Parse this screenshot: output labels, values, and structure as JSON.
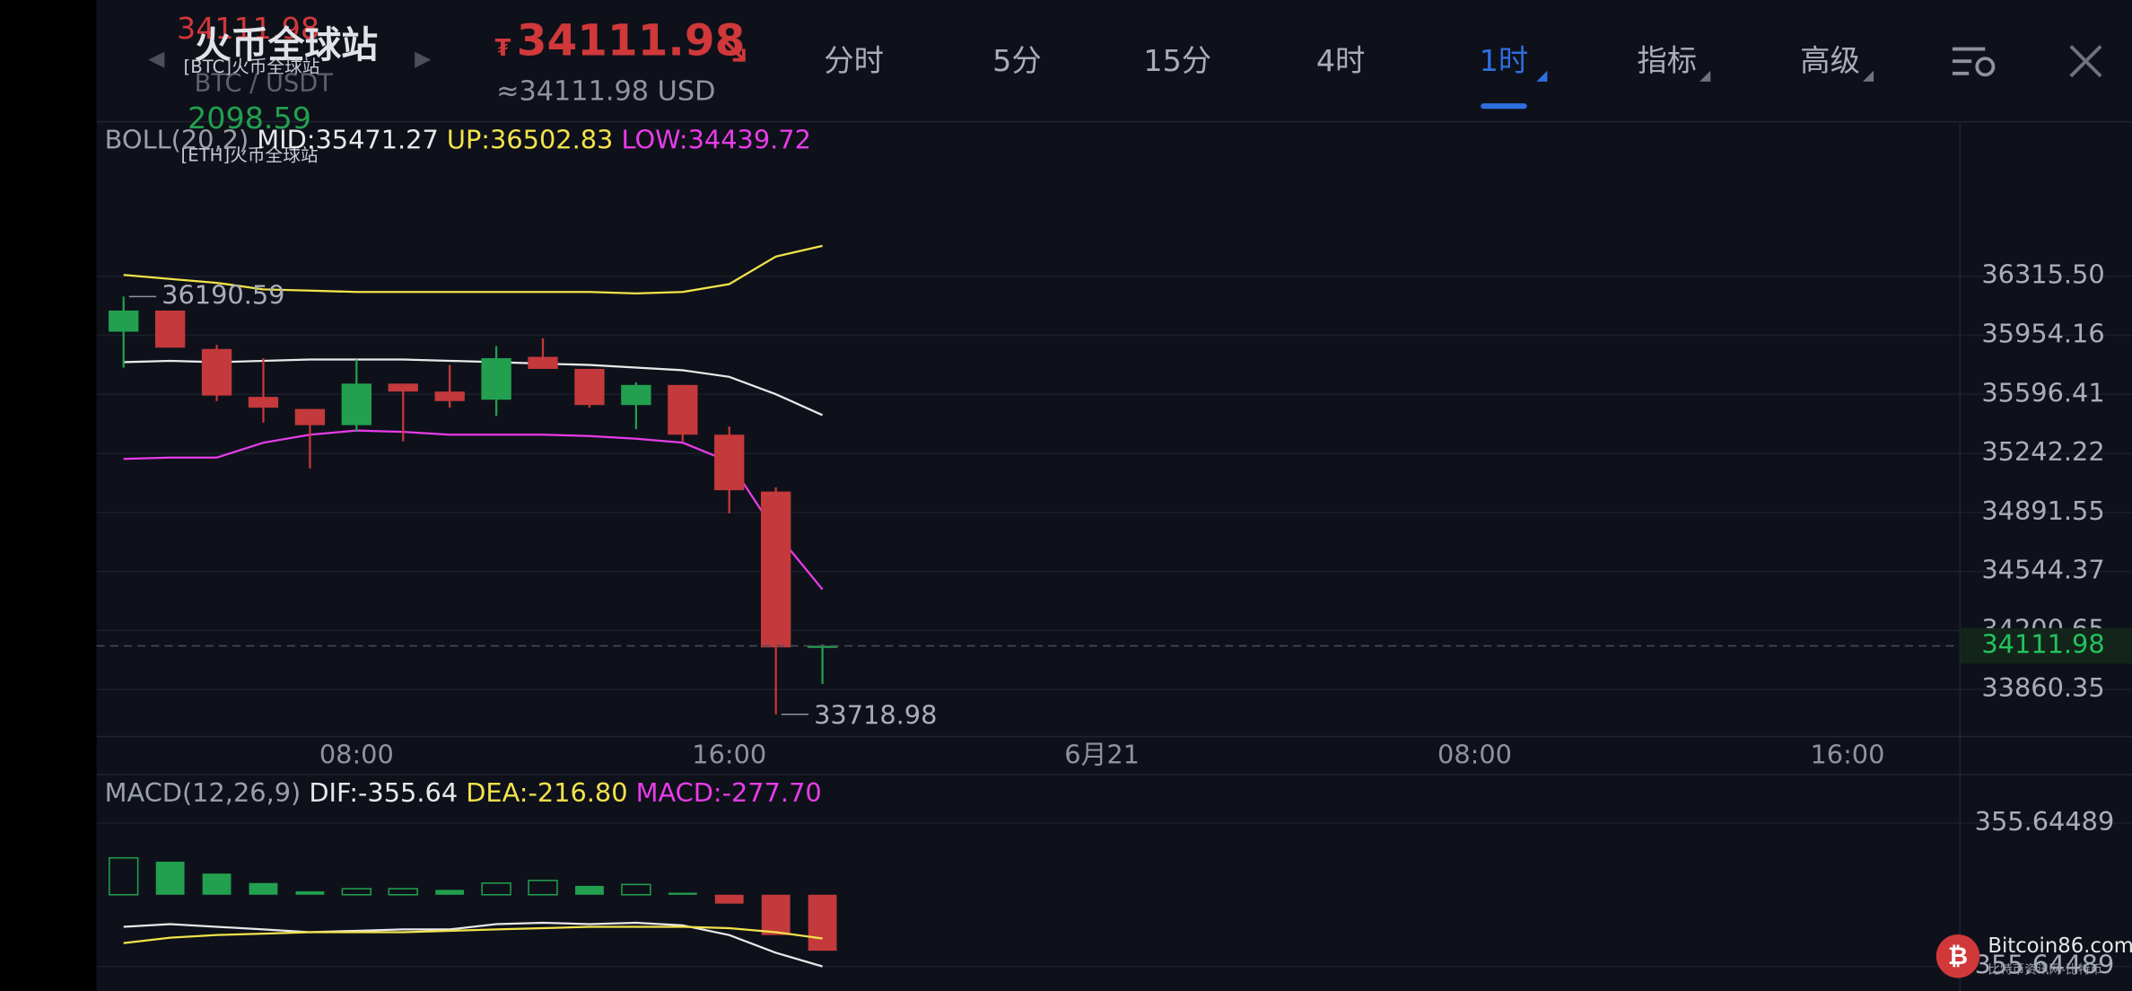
{
  "header": {
    "exchange": "火币全球站",
    "ghost_price": "34111.98",
    "ghost_btc_source": "[BTC]火币全球站",
    "pair": "BTC / USDT",
    "ghost_eth_price": "2098.59",
    "ghost_eth_source": "[ETH]火币全球站",
    "price_symbol": "₮",
    "price": "34111.98",
    "usd_price": "≈34111.98 USD"
  },
  "tabs": [
    "分时",
    "5分",
    "15分",
    "4时",
    "1时",
    "指标",
    "高级"
  ],
  "active_tab": 4,
  "watermark": {
    "site": "Bitcoin86.com",
    "tagline": "比特币资讯网-比特币"
  },
  "chart_data": [
    {
      "type": "candlestick",
      "legend": [
        {
          "text": "BOLL(20,2)",
          "color": "#9aa0ab"
        },
        {
          "text": "MID:35471.27",
          "color": "#e8e8e8"
        },
        {
          "text": "UP:36502.83",
          "color": "#f2e34b"
        },
        {
          "text": "LOW:34439.72",
          "color": "#e83ce8"
        }
      ],
      "x": [
        0,
        1,
        2,
        3,
        4,
        5,
        6,
        7,
        8,
        9,
        10,
        11,
        12,
        13,
        14,
        15
      ],
      "open": [
        35976,
        36105,
        35871,
        35581,
        35508,
        35411,
        35661,
        35613,
        35564,
        35823,
        35750,
        35532,
        35653,
        35354,
        35015,
        34100
      ],
      "high": [
        36190.59,
        36105,
        35896,
        35815,
        35508,
        35807,
        35661,
        35774,
        35888,
        35936,
        35750,
        35669,
        35653,
        35403,
        35040,
        34120
      ],
      "low": [
        35758,
        35879,
        35556,
        35427,
        35153,
        35371,
        35314,
        35516,
        35467,
        35750,
        35516,
        35387,
        35314,
        34886,
        33718.98,
        33893
      ],
      "close": [
        36105,
        35879,
        35589,
        35516,
        35411,
        35661,
        35613,
        35556,
        35815,
        35750,
        35532,
        35653,
        35354,
        35023,
        34103,
        34111.98
      ],
      "up_color": "#22a04f",
      "down_color": "#c4393b",
      "series": [
        {
          "color": "#f2e34b",
          "values": [
            36324,
            36299,
            36275,
            36235,
            36227,
            36219,
            36219,
            36219,
            36219,
            36219,
            36219,
            36210,
            36219,
            36267,
            36437,
            36502.83
          ]
        },
        {
          "color": "#e8e8e8",
          "values": [
            35791,
            35799,
            35791,
            35799,
            35807,
            35807,
            35807,
            35799,
            35791,
            35782,
            35774,
            35758,
            35742,
            35702,
            35597,
            35471.27
          ]
        },
        {
          "color": "#e83ce8",
          "values": [
            35209,
            35217,
            35217,
            35306,
            35354,
            35379,
            35371,
            35354,
            35354,
            35354,
            35346,
            35330,
            35306,
            35193,
            34773,
            34439.72
          ]
        }
      ],
      "log_scale": true,
      "ylim": [
        33596,
        37274
      ],
      "yticks": [
        {
          "value": 36315.5,
          "label": "36315.50"
        },
        35954.16,
        35596.41,
        35242.22,
        34891.55,
        34544.37,
        34200.65,
        33860.35
      ],
      "xlim": [
        -0.58,
        39.4
      ],
      "xticks": [
        {
          "value": 5,
          "label": "08:00"
        },
        {
          "value": 13,
          "label": "16:00"
        },
        {
          "value": 21,
          "label": "6月21"
        },
        {
          "value": 29,
          "label": "08:00"
        },
        {
          "value": 37,
          "label": "16:00"
        }
      ],
      "grid": true
    },
    {
      "type": "macd",
      "legend": [
        {
          "text": "MACD(12,26,9)",
          "color": "#9aa0ab"
        },
        {
          "text": "DIF:-355.64",
          "color": "#e8e8e8"
        },
        {
          "text": "DEA:-216.80",
          "color": "#f2e34b"
        },
        {
          "text": "MACD:-277.70",
          "color": "#e83ce8"
        }
      ],
      "x": [
        0,
        1,
        2,
        3,
        4,
        5,
        6,
        7,
        8,
        9,
        10,
        11,
        12,
        13,
        14,
        15
      ],
      "values": [
        183,
        164,
        105,
        58,
        17,
        30,
        30,
        24,
        58,
        71,
        44,
        51,
        10,
        -44,
        -200,
        -277.7
      ],
      "hollow": [
        true,
        false,
        false,
        false,
        false,
        true,
        true,
        false,
        true,
        true,
        false,
        true,
        false,
        false,
        false,
        false
      ],
      "up_color": "#22a04f",
      "down_color": "#c4393b",
      "series": [
        {
          "color": "#e8e8e8",
          "values": [
            -159,
            -146,
            -159,
            -172,
            -186,
            -179,
            -172,
            -172,
            -146,
            -139,
            -146,
            -139,
            -152,
            -200,
            -288,
            -355.64
          ]
        },
        {
          "color": "#f2e34b",
          "values": [
            -240,
            -213,
            -200,
            -193,
            -186,
            -186,
            -186,
            -179,
            -172,
            -166,
            -159,
            -159,
            -159,
            -166,
            -186,
            -216.8
          ]
        }
      ],
      "ylim": [
        -477.6,
        592.7
      ],
      "yticks": [
        355.64489,
        -355.64489
      ],
      "xlim": [
        -0.58,
        39.4
      ]
    }
  ]
}
